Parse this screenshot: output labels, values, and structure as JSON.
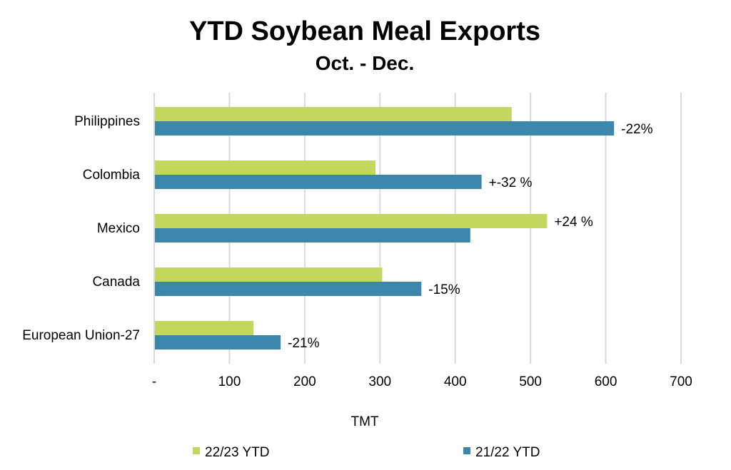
{
  "chart_data": {
    "type": "bar",
    "orientation": "horizontal",
    "title": "YTD Soybean Meal Exports",
    "subtitle": "Oct. - Dec.",
    "xlabel": "TMT",
    "ylabel": "",
    "xlim": [
      0,
      700
    ],
    "x_ticks": [
      0,
      100,
      200,
      300,
      400,
      500,
      600,
      700
    ],
    "x_tick_labels": [
      "-",
      "100",
      "200",
      "300",
      "400",
      "500",
      "600",
      "700"
    ],
    "grid": true,
    "legend_position": "bottom",
    "categories": [
      "Philippines",
      "Colombia",
      "Mexico",
      "Canada",
      "European Union-27"
    ],
    "series": [
      {
        "name": "22/23 YTD",
        "color": "#c3d75e",
        "values": [
          475,
          294,
          522,
          303,
          132
        ]
      },
      {
        "name": "21/22 YTD",
        "color": "#3b87ac",
        "values": [
          611,
          435,
          420,
          355,
          168
        ]
      }
    ],
    "annotations": [
      "-22%",
      "+-32 %",
      "+24 %",
      "-15%",
      "-21%"
    ],
    "annotation_series": [
      1,
      1,
      0,
      1,
      1
    ]
  }
}
